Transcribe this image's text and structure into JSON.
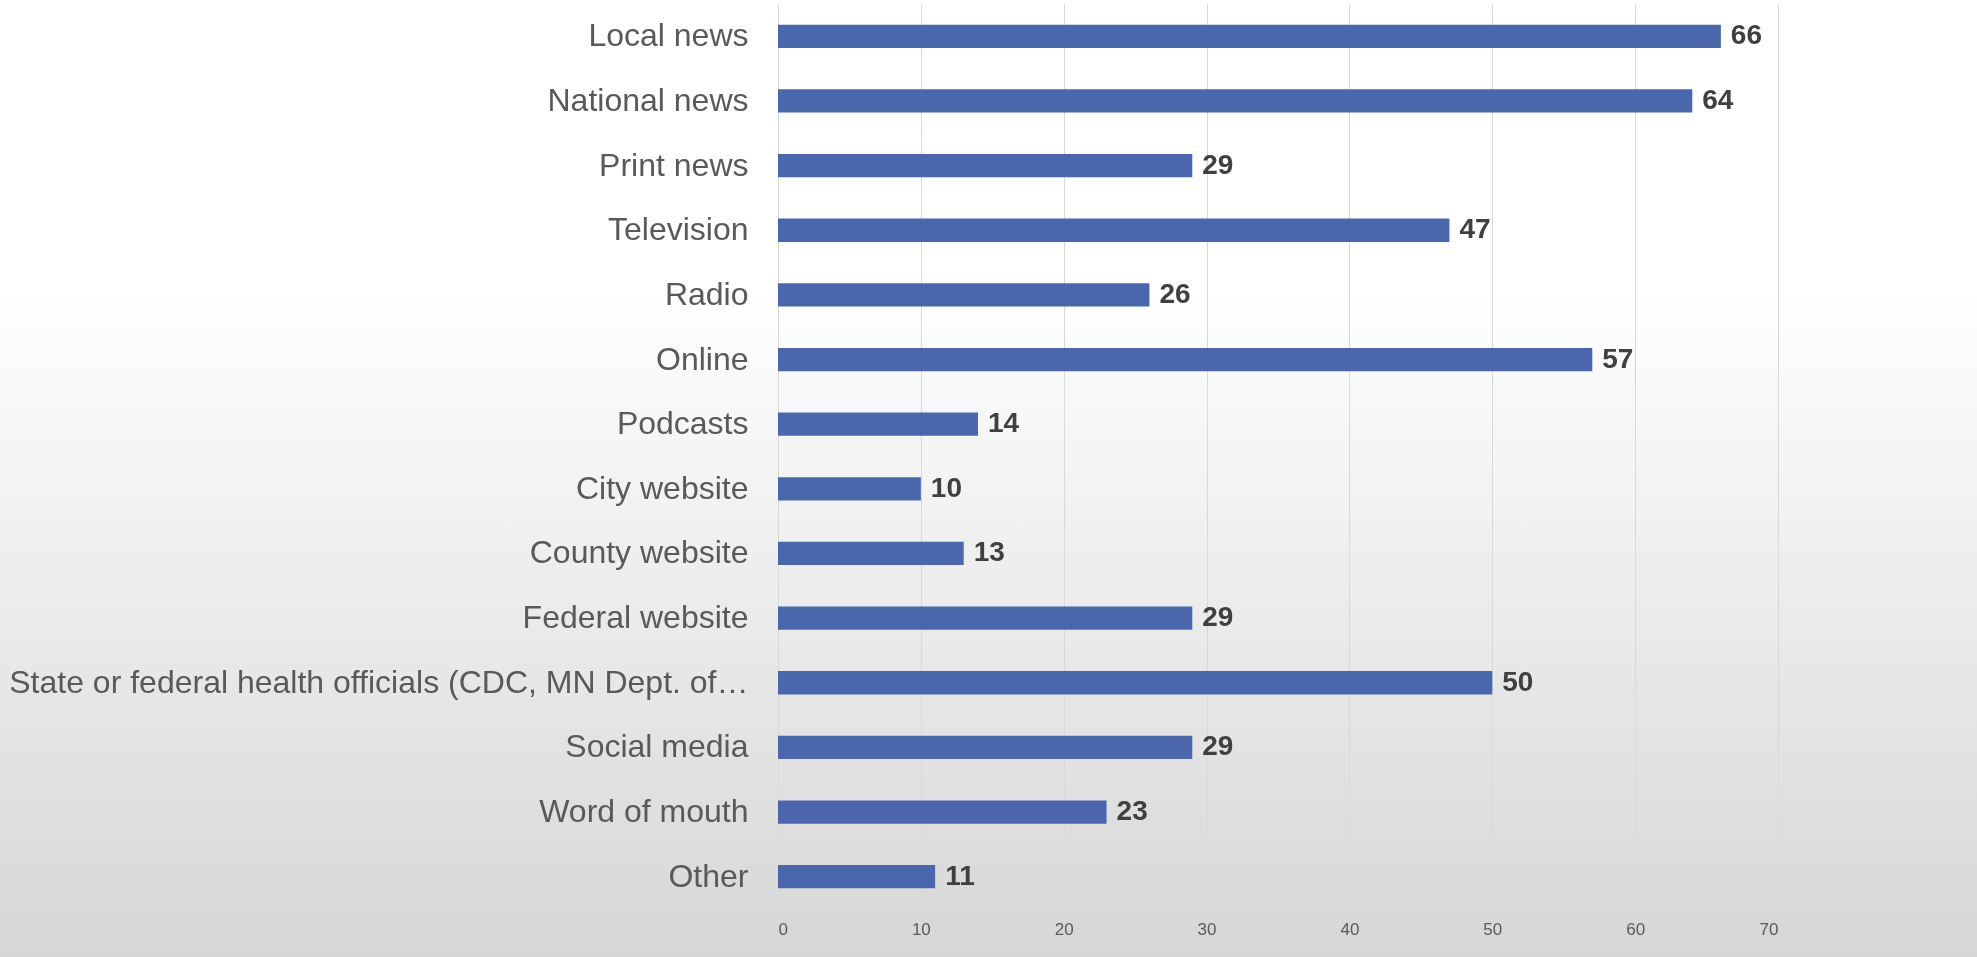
{
  "chart_data": {
    "type": "bar",
    "orientation": "horizontal",
    "categories": [
      "Local news",
      "National news",
      "Print news",
      "Television",
      "Radio",
      "Online",
      "Podcasts",
      "City website",
      "County website",
      "Federal website",
      "State or federal health officials (CDC, MN Dept. of…",
      "Social media",
      "Word of mouth",
      "Other"
    ],
    "values": [
      66,
      64,
      29,
      47,
      26,
      57,
      14,
      10,
      13,
      29,
      50,
      29,
      23,
      11
    ],
    "color": "#4a66ac",
    "xlim": [
      0,
      70
    ],
    "xticks": [
      0,
      10,
      20,
      30,
      40,
      50,
      60,
      70
    ],
    "grid": "x",
    "data_labels": true
  }
}
